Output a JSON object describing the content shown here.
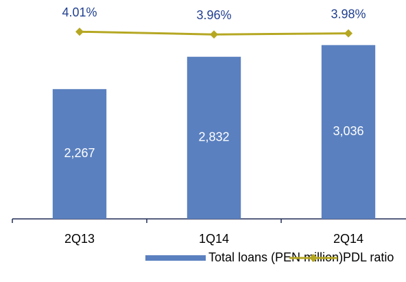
{
  "chart_data": {
    "type": "combo",
    "categories": [
      "2Q13",
      "1Q14",
      "2Q14"
    ],
    "series": [
      {
        "name": "Total loans (PEN million)",
        "type": "bar",
        "color": "#5a80bf",
        "values": [
          2267,
          2832,
          3036
        ],
        "value_labels": [
          "2,267",
          "2,832",
          "3,036"
        ]
      },
      {
        "name": "PDL ratio",
        "type": "line",
        "axis": "y2",
        "color": "#b5a722",
        "values": [
          4.01,
          3.96,
          3.98
        ],
        "value_labels": [
          "4.01%",
          "3.96%",
          "3.98%"
        ]
      }
    ],
    "ylim": [
      0,
      3500
    ],
    "y2lim": [
      0.6,
      4.25
    ],
    "legend": "bottom"
  }
}
